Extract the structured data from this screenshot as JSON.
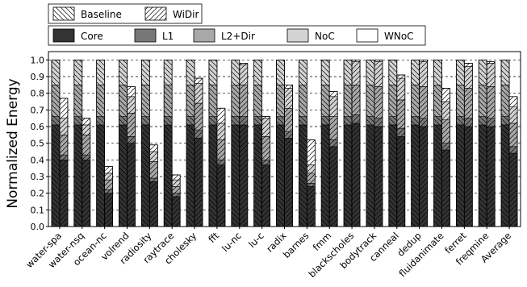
{
  "chart_data": {
    "type": "bar",
    "ylabel": "Normalized Energy",
    "ylim": [
      0,
      1.05
    ],
    "yticks": [
      "0.0",
      "0.1",
      "0.2",
      "0.3",
      "0.4",
      "0.5",
      "0.6",
      "0.7",
      "0.8",
      "0.9",
      "1.0"
    ],
    "grid": true,
    "categories": [
      "water-spa",
      "water-nsq",
      "ocean-nc",
      "volrend",
      "radiosity",
      "raytrace",
      "cholesky",
      "fft",
      "lu-nc",
      "lu-c",
      "radix",
      "barnes",
      "fmm",
      "blackscholes",
      "bodytrack",
      "canneal",
      "dedup",
      "fluidanimate",
      "ferret",
      "freqmine",
      "Average"
    ],
    "configs": [
      {
        "name": "Baseline",
        "hatch": "backslash"
      },
      {
        "name": "WiDir",
        "hatch": "slash"
      }
    ],
    "components": [
      {
        "name": "Core",
        "color": "#333333"
      },
      {
        "name": "L1",
        "color": "#777777"
      },
      {
        "name": "L2+Dir",
        "color": "#a8a8a8"
      },
      {
        "name": "NoC",
        "color": "#d3d3d3"
      },
      {
        "name": "WNoC",
        "color": "#ffffff"
      }
    ],
    "baseline": [
      [
        0.61,
        0.05,
        0.19,
        0.15,
        0
      ],
      [
        0.61,
        0.05,
        0.19,
        0.15,
        0
      ],
      [
        0.61,
        0.05,
        0.19,
        0.15,
        0
      ],
      [
        0.61,
        0.05,
        0.19,
        0.15,
        0
      ],
      [
        0.61,
        0.05,
        0.19,
        0.15,
        0
      ],
      [
        0.61,
        0.05,
        0.19,
        0.15,
        0
      ],
      [
        0.61,
        0.05,
        0.19,
        0.15,
        0
      ],
      [
        0.61,
        0.05,
        0.19,
        0.15,
        0
      ],
      [
        0.61,
        0.05,
        0.19,
        0.15,
        0
      ],
      [
        0.61,
        0.05,
        0.19,
        0.15,
        0
      ],
      [
        0.61,
        0.05,
        0.19,
        0.15,
        0
      ],
      [
        0.61,
        0.05,
        0.19,
        0.15,
        0
      ],
      [
        0.61,
        0.05,
        0.19,
        0.15,
        0
      ],
      [
        0.61,
        0.05,
        0.19,
        0.15,
        0
      ],
      [
        0.61,
        0.05,
        0.19,
        0.15,
        0
      ],
      [
        0.61,
        0.05,
        0.19,
        0.15,
        0
      ],
      [
        0.61,
        0.05,
        0.19,
        0.15,
        0
      ],
      [
        0.61,
        0.05,
        0.19,
        0.15,
        0
      ],
      [
        0.61,
        0.05,
        0.19,
        0.15,
        0
      ],
      [
        0.61,
        0.05,
        0.19,
        0.15,
        0
      ],
      [
        0.61,
        0.05,
        0.19,
        0.15,
        0
      ]
    ],
    "widir": [
      [
        0.4,
        0.03,
        0.12,
        0.1,
        0.12
      ],
      [
        0.4,
        0.03,
        0.12,
        0.06,
        0.04
      ],
      [
        0.2,
        0.02,
        0.06,
        0.04,
        0.04
      ],
      [
        0.5,
        0.04,
        0.14,
        0.1,
        0.06
      ],
      [
        0.27,
        0.02,
        0.1,
        0.06,
        0.04
      ],
      [
        0.18,
        0.02,
        0.04,
        0.04,
        0.03
      ],
      [
        0.53,
        0.05,
        0.16,
        0.12,
        0.03
      ],
      [
        0.37,
        0.03,
        0.12,
        0.1,
        0.09
      ],
      [
        0.61,
        0.05,
        0.19,
        0.12,
        0.01
      ],
      [
        0.37,
        0.03,
        0.14,
        0.11,
        0.01
      ],
      [
        0.53,
        0.04,
        0.14,
        0.12,
        0.02
      ],
      [
        0.24,
        0.02,
        0.06,
        0.05,
        0.15
      ],
      [
        0.48,
        0.04,
        0.14,
        0.12,
        0.03
      ],
      [
        0.62,
        0.05,
        0.18,
        0.14,
        0.01
      ],
      [
        0.6,
        0.05,
        0.19,
        0.15,
        0.01
      ],
      [
        0.54,
        0.05,
        0.17,
        0.13,
        0.02
      ],
      [
        0.6,
        0.05,
        0.19,
        0.15,
        0.01
      ],
      [
        0.46,
        0.04,
        0.14,
        0.11,
        0.08
      ],
      [
        0.6,
        0.05,
        0.18,
        0.13,
        0.02
      ],
      [
        0.6,
        0.05,
        0.19,
        0.14,
        0.01
      ],
      [
        0.44,
        0.04,
        0.14,
        0.1,
        0.06
      ]
    ]
  }
}
